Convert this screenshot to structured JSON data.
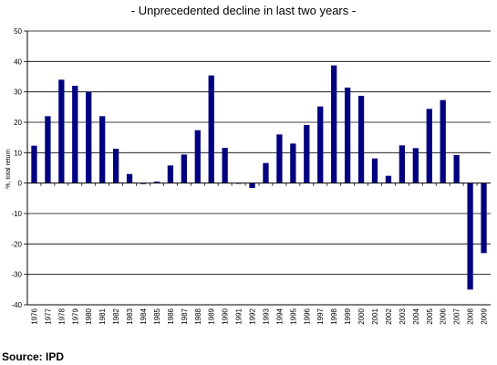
{
  "chart_data": {
    "type": "bar",
    "title": "- Unprecedented decline in last two years -",
    "xlabel": "",
    "ylabel": "%, total return",
    "ylim": [
      -40,
      50
    ],
    "yticks": [
      50,
      40,
      30,
      20,
      10,
      0,
      -10,
      -20,
      -30,
      -40
    ],
    "grid": true,
    "bar_color": "#000080",
    "categories": [
      "1976",
      "1977",
      "1978",
      "1979",
      "1980",
      "1981",
      "1982",
      "1983",
      "1984",
      "1985",
      "1986",
      "1987",
      "1988",
      "1989",
      "1990",
      "1991",
      "1992",
      "1993",
      "1994",
      "1995",
      "1996",
      "1997",
      "1998",
      "1999",
      "2000",
      "2001",
      "2002",
      "2003",
      "2004",
      "2005",
      "2006",
      "2007",
      "2008",
      "2009"
    ],
    "values": [
      12.3,
      22,
      34,
      32,
      30,
      22,
      11.3,
      3,
      -0.3,
      0.5,
      5.8,
      9.4,
      17.4,
      35.4,
      11.6,
      -0.2,
      -1.6,
      6.6,
      16,
      13,
      19.1,
      25.2,
      38.7,
      31.4,
      28.7,
      8.1,
      2.4,
      12.4,
      11.5,
      24.4,
      27.3,
      9.2,
      -35,
      -23
    ]
  },
  "source": "Source: IPD"
}
